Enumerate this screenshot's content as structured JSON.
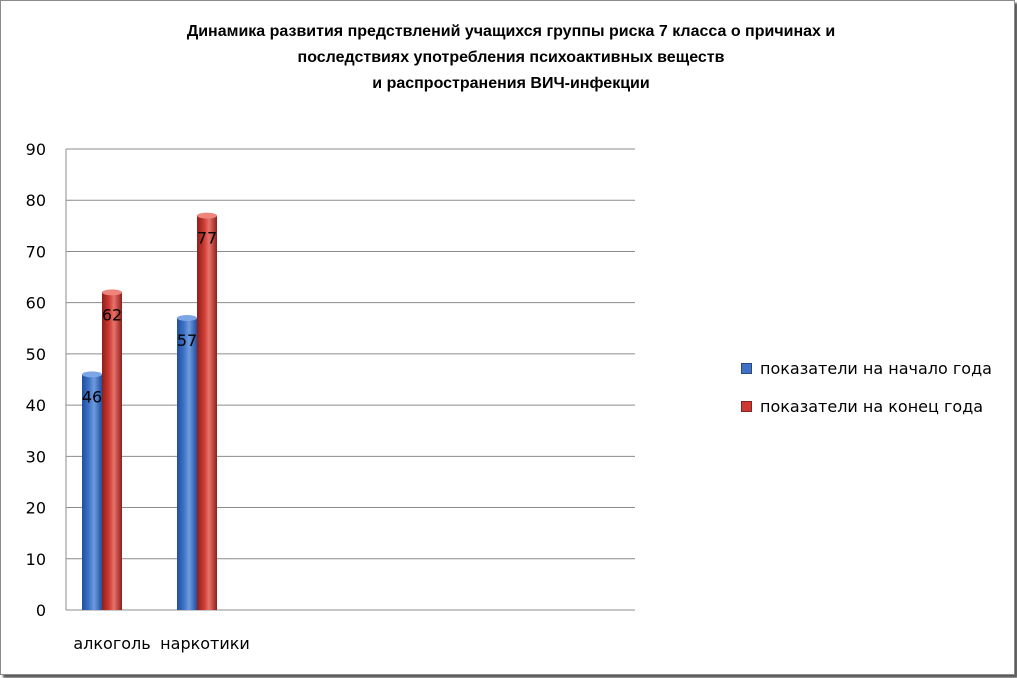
{
  "chart_data": {
    "type": "bar",
    "title_lines": [
      "Динамика развития предствлений учащихся группы риска 7 класса о причинах и",
      "последствиях употребления психоактивных веществ",
      "и распространения ВИЧ-инфекции"
    ],
    "categories": [
      "алкоголь",
      "наркотики"
    ],
    "series": [
      {
        "name": "показатели на начало года",
        "values": [
          46,
          57
        ],
        "color": "#3f72c6"
      },
      {
        "name": "показатели на конец года",
        "values": [
          62,
          77
        ],
        "color": "#cc3a33"
      }
    ],
    "yticks": [
      "0",
      "10",
      "20",
      "30",
      "40",
      "50",
      "60",
      "70",
      "80",
      "90"
    ],
    "ylim": [
      0,
      90
    ],
    "xlabel": "",
    "ylabel": "",
    "grid": true,
    "legend_position": "right"
  }
}
